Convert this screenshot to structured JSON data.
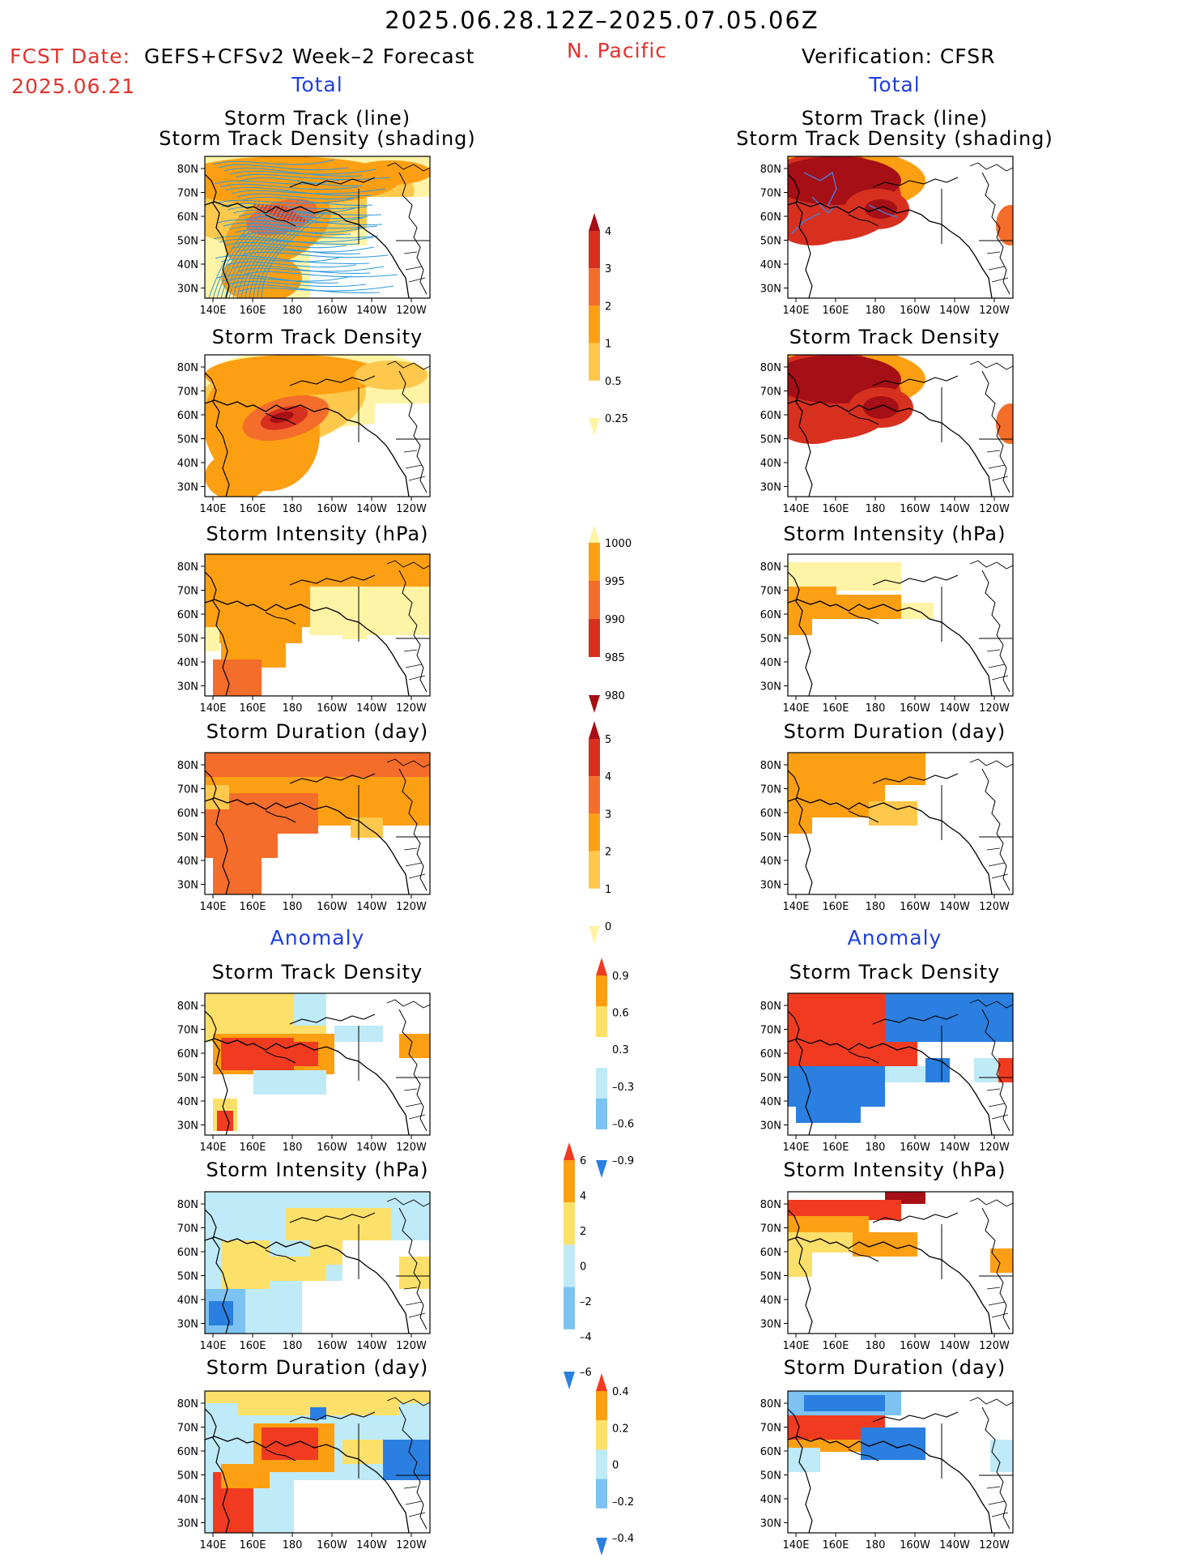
{
  "header": {
    "title": "2025.06.28.12Z–2025.07.05.06Z",
    "fcst_label": "FCST Date:",
    "model": "GEFS+CFSv2 Week–2 Forecast",
    "fcst_date": "2025.06.21",
    "region": "N. Pacific",
    "verification": "Verification: CFSR"
  },
  "sections": {
    "total": "Total",
    "anomaly": "Anomaly"
  },
  "panel_titles": {
    "track_line": "Storm Track (line)",
    "track_shading": "Storm Track Density (shading)",
    "track_density": "Storm Track Density",
    "intensity": "Storm Intensity (hPa)",
    "duration": "Storm Duration (day)"
  },
  "axes": {
    "x_ticks": [
      "140E",
      "160E",
      "180",
      "160W",
      "140W",
      "120W"
    ],
    "y_ticks": [
      "80N",
      "70N",
      "60N",
      "50N",
      "40N",
      "30N"
    ]
  },
  "colorbars": {
    "density": {
      "labels": [
        "4",
        "3",
        "2",
        "1",
        "0.5",
        "0.25"
      ],
      "colors": [
        "#a50f15",
        "#d7301f",
        "#f46d2b",
        "#fd9f12",
        "#fdc84b",
        "#fff3a6"
      ]
    },
    "intensity": {
      "labels": [
        "1000",
        "995",
        "990",
        "985",
        "980"
      ],
      "colors": [
        "#fff3a6",
        "#fd9f12",
        "#f46d2b",
        "#d7301f",
        "#a50f15"
      ]
    },
    "duration": {
      "labels": [
        "5",
        "4",
        "3",
        "2",
        "1",
        "0"
      ],
      "colors": [
        "#a50f15",
        "#d7301f",
        "#f46d2b",
        "#fd9f12",
        "#fdc84b",
        "#fff3a6"
      ]
    },
    "anom_density": {
      "labels": [
        "0.9",
        "0.6",
        "0.3",
        "–0.3",
        "–0.6",
        "–0.9"
      ],
      "colors": [
        "#f03b20",
        "#fd9f12",
        "#fde06a",
        "#ffffff",
        "#bfeaf7",
        "#7cc3f2",
        "#2a7fe0"
      ]
    },
    "anom_intensity": {
      "labels": [
        "6",
        "4",
        "2",
        "0",
        "–2",
        "–4",
        "–6"
      ],
      "colors": [
        "#f03b20",
        "#fd9f12",
        "#fde06a",
        "#bfeaf7",
        "#7cc3f2",
        "#2a7fe0"
      ]
    },
    "anom_duration": {
      "labels": [
        "0.4",
        "0.2",
        "0",
        "–0.2",
        "–0.4"
      ],
      "colors": [
        "#f03b20",
        "#fd9f12",
        "#fde06a",
        "#bfeaf7",
        "#7cc3f2",
        "#2a7fe0"
      ]
    }
  },
  "palette": {
    "red_dark": "#a50f15",
    "red": "#d7301f",
    "orange_red": "#f46d2b",
    "orange": "#fd9f12",
    "yellow_orange": "#fdc84b",
    "yellow": "#fff3a6",
    "anom_red": "#f03b20",
    "anom_orange": "#fd9f12",
    "anom_yellow": "#fde06a",
    "anom_lightblue": "#bfeaf7",
    "anom_blue": "#7cc3f2",
    "anom_darkblue": "#2a7fe0",
    "track_line": "#2e9bdc"
  }
}
